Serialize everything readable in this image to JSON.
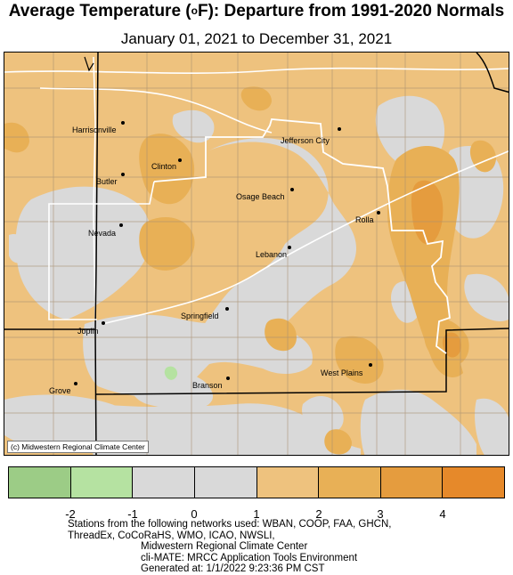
{
  "title_main": "Average Temperature (",
  "title_deg": "o",
  "title_tail": "F): Departure from 1991-2020 Normals",
  "subtitle": "January 01, 2021 to December 31, 2021",
  "credit": "(c) Midwestern Regional Climate Center",
  "cities": [
    {
      "name": "Harrisonville"
    },
    {
      "name": "Jefferson City"
    },
    {
      "name": "Clinton"
    },
    {
      "name": "Butler"
    },
    {
      "name": "Osage Beach"
    },
    {
      "name": "Rolla"
    },
    {
      "name": "Nevada"
    },
    {
      "name": "Lebanon"
    },
    {
      "name": "Springfield"
    },
    {
      "name": "Joplin"
    },
    {
      "name": "West Plains"
    },
    {
      "name": "Branson"
    },
    {
      "name": "Grove"
    }
  ],
  "legend": {
    "colors": [
      "#9ccc86",
      "#b5e2a1",
      "#d9d9d9",
      "#d9d9d9",
      "#eec27e",
      "#e8b056",
      "#e59c3e",
      "#e6892a"
    ],
    "ticks": [
      "-2",
      "-1",
      "0",
      "1",
      "2",
      "3",
      "4"
    ]
  },
  "footer": {
    "line1": "Stations from the following networks used: WBAN, COOP, FAA, GHCN,",
    "line2": "ThreadEx, CoCoRaHS, WMO, ICAO, NWSLI,",
    "line3": "Midwestern Regional Climate Center",
    "line4": "cli-MATE: MRCC Application Tools Environment",
    "line5": "Generated at: 1/1/2022 9:23:36 PM CST"
  }
}
